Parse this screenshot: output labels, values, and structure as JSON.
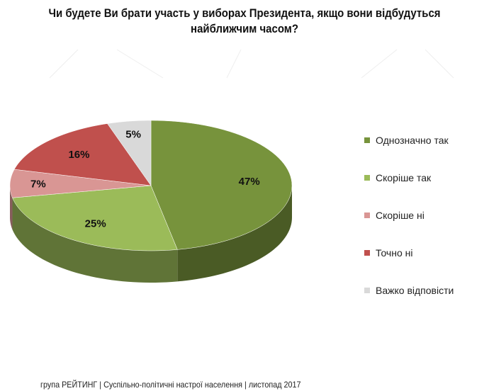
{
  "chart_data": {
    "type": "pie",
    "title": "Чи будете Ви брати участь у виборах Президента, якщо вони відбудуться найближчим часом?",
    "categories": [
      "Однозначно так",
      "Скоріше  так",
      "Скоріше  ні",
      "Точно ні",
      "Важко відповісти"
    ],
    "values": [
      47,
      25,
      7,
      16,
      5
    ],
    "labels": [
      "47%",
      "25%",
      "7%",
      "16%",
      "5%"
    ],
    "colors": [
      "#77933C",
      "#9BBB59",
      "#D99694",
      "#C0504D",
      "#D9D9D9"
    ],
    "legend": "right"
  },
  "footer": "група РЕЙТИНГ  | Суспільно-політичні настрої населення  |  листопад 2017"
}
